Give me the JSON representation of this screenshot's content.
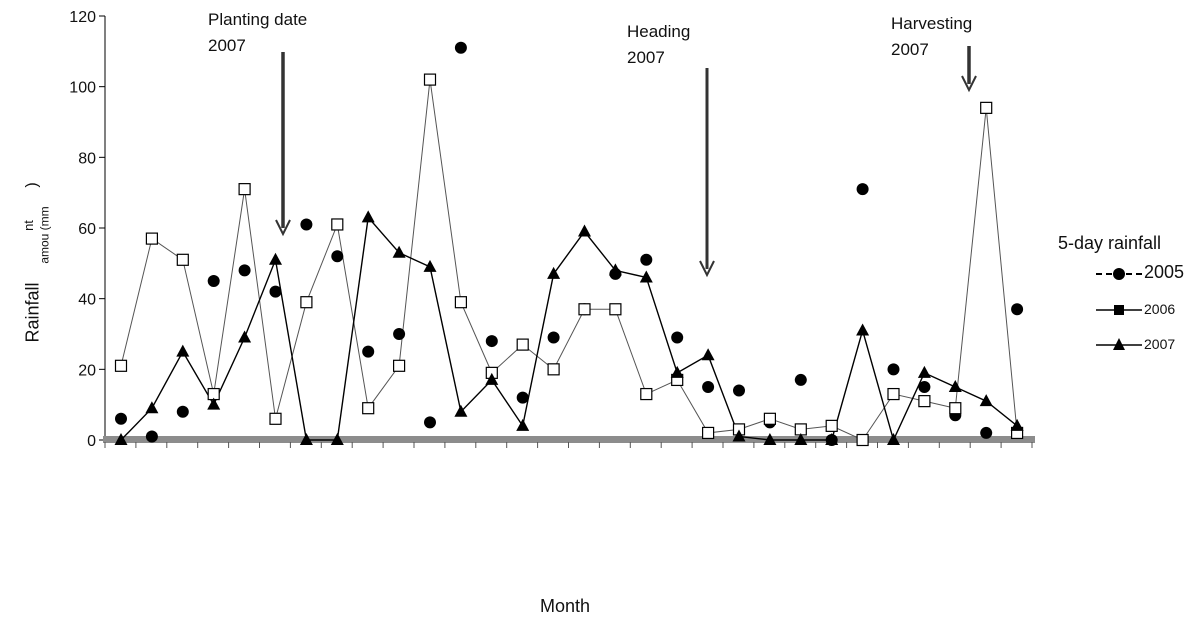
{
  "chart_data": {
    "type": "line",
    "title": "",
    "xlabel": "Month",
    "ylabel": "Rainfall",
    "ylabel_fragments": [
      "amou (mm",
      ")",
      "nt"
    ],
    "ylim": [
      0,
      120
    ],
    "yticks": [
      0,
      20,
      40,
      60,
      80,
      100,
      120
    ],
    "x": [
      1,
      2,
      3,
      4,
      5,
      6,
      7,
      8,
      9,
      10,
      11,
      12,
      13,
      14,
      15,
      16,
      17,
      18,
      19,
      20,
      21,
      22,
      23,
      24,
      25,
      26,
      27,
      28,
      29,
      30
    ],
    "legend_title": "5-day rainfall",
    "legend_position": "right",
    "series": [
      {
        "name": "2005",
        "marker": "circle",
        "line": "none",
        "values": [
          6,
          1,
          8,
          45,
          48,
          42,
          61,
          52,
          25,
          30,
          5,
          111,
          28,
          12,
          29,
          37,
          47,
          51,
          29,
          15,
          14,
          5,
          17,
          0,
          71,
          20,
          15,
          7,
          2,
          37
        ]
      },
      {
        "name": "2006",
        "marker": "square",
        "line": "solid",
        "values": [
          21,
          57,
          51,
          13,
          71,
          6,
          39,
          61,
          9,
          21,
          102,
          39,
          19,
          27,
          20,
          37,
          37,
          13,
          17,
          2,
          3,
          6,
          3,
          4,
          0,
          13,
          11,
          9,
          94,
          2
        ]
      },
      {
        "name": "2007",
        "marker": "triangle",
        "line": "solid",
        "values": [
          0,
          9,
          25,
          10,
          29,
          51,
          0,
          0,
          63,
          53,
          49,
          8,
          17,
          4,
          47,
          59,
          48,
          46,
          19,
          24,
          1,
          0,
          0,
          0,
          31,
          0,
          19,
          15,
          11,
          4
        ]
      }
    ],
    "annotations": [
      {
        "text": [
          "Planting date",
          "2007"
        ],
        "arrow_at_x": 6
      },
      {
        "text": [
          "Heading",
          "2007"
        ],
        "arrow_at_x": 20
      },
      {
        "text": [
          "Harvesting",
          "2007"
        ],
        "arrow_at_x": 28
      }
    ],
    "grid": false
  }
}
